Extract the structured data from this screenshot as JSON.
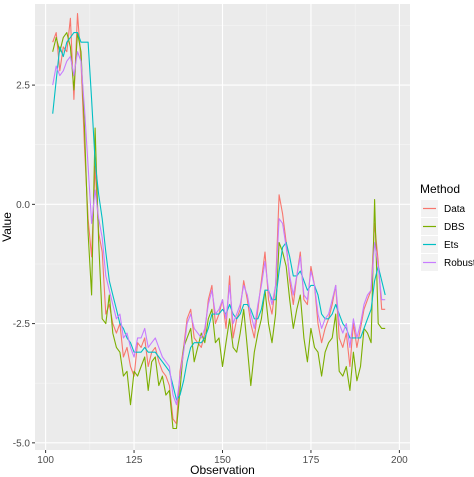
{
  "chart_data": {
    "type": "line",
    "title": "",
    "xlabel": "Observation",
    "ylabel": "Value",
    "xlim": [
      97,
      203
    ],
    "ylim": [
      -5.15,
      4.2
    ],
    "x_ticks": [
      100,
      125,
      150,
      175,
      200
    ],
    "x_tick_labels": [
      "100",
      "125",
      "150",
      "175",
      "200"
    ],
    "y_ticks": [
      -5.0,
      -2.5,
      0.0,
      2.5
    ],
    "y_tick_labels": [
      "-5.0",
      "-2.5",
      "0.0",
      "2.5"
    ],
    "grid": true,
    "legend": {
      "title": "Method",
      "position": "right"
    },
    "x": [
      102,
      103,
      104,
      105,
      106,
      107,
      108,
      109,
      110,
      111,
      112,
      113,
      114,
      115,
      116,
      117,
      118,
      119,
      120,
      121,
      122,
      123,
      124,
      125,
      126,
      127,
      128,
      129,
      130,
      131,
      132,
      133,
      134,
      135,
      136,
      137,
      138,
      139,
      140,
      141,
      142,
      143,
      144,
      145,
      146,
      147,
      148,
      149,
      150,
      151,
      152,
      153,
      154,
      155,
      156,
      157,
      158,
      159,
      160,
      161,
      162,
      163,
      164,
      165,
      166,
      167,
      168,
      169,
      170,
      171,
      172,
      173,
      174,
      175,
      176,
      177,
      178,
      179,
      180,
      181,
      182,
      183,
      184,
      185,
      186,
      187,
      188,
      189,
      190,
      191,
      192,
      193,
      194,
      195,
      196
    ],
    "series": [
      {
        "name": "Data",
        "color": "#F8766D",
        "values": [
          3.4,
          3.6,
          2.8,
          3.3,
          3.2,
          3.9,
          2.2,
          4.0,
          3.0,
          1.2,
          -0.3,
          -1.1,
          0.8,
          -0.6,
          -1.0,
          -2.3,
          -2.1,
          -2.5,
          -2.7,
          -2.5,
          -3.2,
          -3.0,
          -3.4,
          -3.6,
          -2.9,
          -3.0,
          -2.8,
          -3.4,
          -3.1,
          -3.0,
          -3.3,
          -3.5,
          -3.6,
          -3.8,
          -4.5,
          -4.6,
          -3.5,
          -3.0,
          -2.4,
          -2.2,
          -2.8,
          -2.9,
          -3.0,
          -2.7,
          -2.0,
          -1.7,
          -2.5,
          -2.3,
          -2.0,
          -2.6,
          -1.5,
          -2.8,
          -2.4,
          -2.2,
          -1.6,
          -2.0,
          -2.5,
          -2.8,
          -2.2,
          -1.6,
          -1.0,
          -2.0,
          -2.3,
          -1.7,
          0.2,
          -0.2,
          -0.8,
          -1.6,
          -2.1,
          -1.5,
          -1.0,
          -2.0,
          -2.1,
          -1.3,
          -1.7,
          -2.5,
          -2.9,
          -2.6,
          -2.4,
          -2.1,
          -1.7,
          -2.8,
          -3.0,
          -2.7,
          -3.4,
          -2.5,
          -3.0,
          -2.6,
          -2.2,
          -2.0,
          -1.8,
          -0.4,
          -1.2,
          -2.2,
          -2.2
        ]
      },
      {
        "name": "DBS",
        "color": "#7CAE00",
        "values": [
          3.2,
          3.5,
          3.2,
          3.5,
          3.6,
          3.3,
          2.4,
          3.6,
          3.2,
          1.6,
          -0.6,
          -1.9,
          1.6,
          -0.8,
          -2.4,
          -2.5,
          -1.9,
          -2.7,
          -3.0,
          -3.1,
          -3.6,
          -3.5,
          -4.2,
          -3.5,
          -3.6,
          -3.4,
          -3.2,
          -3.9,
          -3.3,
          -3.2,
          -3.8,
          -3.6,
          -4.0,
          -3.9,
          -4.7,
          -4.7,
          -3.9,
          -3.0,
          -2.8,
          -2.6,
          -3.3,
          -3.0,
          -2.7,
          -2.9,
          -2.4,
          -2.2,
          -2.9,
          -2.8,
          -3.4,
          -2.9,
          -2.4,
          -3.0,
          -3.1,
          -2.7,
          -2.2,
          -3.0,
          -3.8,
          -3.1,
          -2.7,
          -2.4,
          -1.8,
          -2.5,
          -2.9,
          -2.3,
          -0.8,
          -1.0,
          -1.3,
          -2.0,
          -2.6,
          -2.2,
          -1.9,
          -2.8,
          -3.3,
          -2.6,
          -3.0,
          -3.1,
          -3.6,
          -3.1,
          -2.9,
          -2.8,
          -2.3,
          -3.5,
          -3.6,
          -3.4,
          -3.9,
          -3.1,
          -3.7,
          -3.4,
          -2.6,
          -2.7,
          -2.9,
          0.1,
          -2.5,
          -2.6,
          -2.6
        ]
      },
      {
        "name": "Ets",
        "color": "#00BFC4",
        "values": [
          1.9,
          2.6,
          3.3,
          3.1,
          3.4,
          3.5,
          3.6,
          3.6,
          3.4,
          3.4,
          3.4,
          2.2,
          0.9,
          0.2,
          -0.3,
          -1.0,
          -1.6,
          -1.9,
          -2.2,
          -2.5,
          -2.6,
          -2.8,
          -2.9,
          -3.1,
          -3.1,
          -3.1,
          -3.0,
          -3.1,
          -3.1,
          -3.1,
          -3.2,
          -3.3,
          -3.4,
          -3.5,
          -3.8,
          -4.1,
          -4.0,
          -3.7,
          -3.3,
          -3.0,
          -2.9,
          -2.9,
          -2.9,
          -2.8,
          -2.6,
          -2.3,
          -2.3,
          -2.3,
          -2.2,
          -2.3,
          -2.1,
          -2.3,
          -2.4,
          -2.3,
          -2.1,
          -2.1,
          -2.2,
          -2.4,
          -2.4,
          -2.2,
          -1.8,
          -1.8,
          -2.0,
          -2.0,
          -1.4,
          -0.9,
          -0.8,
          -1.1,
          -1.5,
          -1.5,
          -1.4,
          -1.6,
          -1.8,
          -1.7,
          -1.7,
          -1.9,
          -2.3,
          -2.4,
          -2.4,
          -2.3,
          -2.1,
          -2.3,
          -2.5,
          -2.6,
          -2.8,
          -2.8,
          -2.8,
          -2.8,
          -2.6,
          -2.4,
          -2.2,
          -1.6,
          -1.3,
          -1.6,
          -1.9
        ]
      },
      {
        "name": "Robust",
        "color": "#C77CFF",
        "values": [
          2.5,
          2.9,
          2.7,
          2.8,
          3.0,
          3.1,
          2.7,
          3.2,
          3.0,
          2.0,
          0.8,
          -0.4,
          0.3,
          -0.3,
          -0.7,
          -1.5,
          -1.8,
          -2.1,
          -2.4,
          -2.3,
          -2.8,
          -2.7,
          -3.0,
          -3.2,
          -2.8,
          -2.8,
          -2.6,
          -3.0,
          -2.9,
          -2.8,
          -3.0,
          -3.2,
          -3.3,
          -3.4,
          -4.0,
          -4.2,
          -3.6,
          -3.1,
          -2.5,
          -2.3,
          -2.6,
          -2.7,
          -2.8,
          -2.6,
          -2.1,
          -1.8,
          -2.3,
          -2.2,
          -2.0,
          -2.4,
          -1.7,
          -2.5,
          -2.3,
          -2.1,
          -1.7,
          -1.9,
          -2.3,
          -2.6,
          -2.1,
          -1.7,
          -1.2,
          -1.8,
          -2.1,
          -1.7,
          -0.3,
          -0.4,
          -0.9,
          -1.5,
          -1.9,
          -1.5,
          -1.1,
          -1.9,
          -2.0,
          -1.4,
          -1.7,
          -2.3,
          -2.6,
          -2.4,
          -2.3,
          -2.0,
          -1.7,
          -2.5,
          -2.7,
          -2.5,
          -3.0,
          -2.4,
          -2.8,
          -2.5,
          -2.1,
          -1.9,
          -1.8,
          -0.8,
          -1.3,
          -2.0,
          -2.0
        ]
      }
    ]
  }
}
